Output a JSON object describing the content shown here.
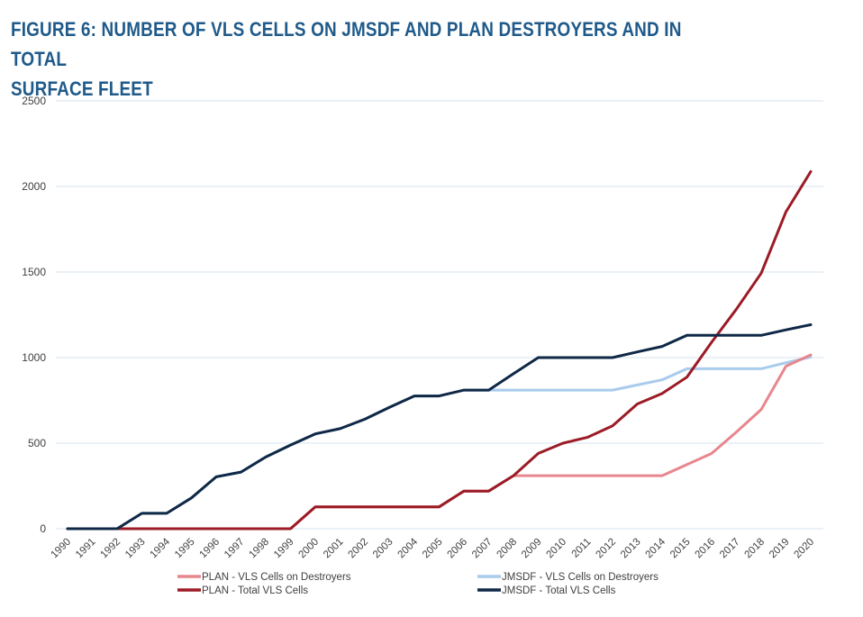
{
  "chart_data": {
    "type": "line",
    "title": "FIGURE 6: NUMBER OF VLS CELLS ON JMSDF AND PLAN DESTROYERS AND IN TOTAL SURFACE FLEET",
    "title_lines": [
      "FIGURE 6: NUMBER OF VLS CELLS ON JMSDF AND PLAN DESTROYERS AND IN TOTAL",
      "SURFACE FLEET"
    ],
    "xlabel": "",
    "ylabel": "",
    "ylim": [
      0,
      2500
    ],
    "yticks": [
      0,
      500,
      1000,
      1500,
      2000,
      2500
    ],
    "grid": true,
    "legend_position": "bottom",
    "x": [
      "1990",
      "1991",
      "1992",
      "1993",
      "1994",
      "1995",
      "1996",
      "1997",
      "1998",
      "1999",
      "2000",
      "2001",
      "2002",
      "2003",
      "2004",
      "2005",
      "2006",
      "2007",
      "2008",
      "2009",
      "2010",
      "2011",
      "2012",
      "2013",
      "2014",
      "2015",
      "2016",
      "2017",
      "2018",
      "2019",
      "2020"
    ],
    "series": [
      {
        "name": "PLAN - VLS Cells on Destroyers",
        "color": "#e8868e",
        "values": [
          0,
          0,
          0,
          0,
          0,
          0,
          0,
          0,
          0,
          0,
          128,
          128,
          128,
          128,
          128,
          128,
          220,
          220,
          310,
          310,
          310,
          310,
          310,
          310,
          310,
          375,
          440,
          565,
          697,
          950,
          1016
        ]
      },
      {
        "name": "JMSDF - VLS Cells on Destroyers",
        "color": "#a9cbec",
        "values": [
          0,
          0,
          0,
          90,
          90,
          180,
          303,
          331,
          419,
          489,
          554,
          585,
          640,
          710,
          776,
          776,
          810,
          810,
          810,
          810,
          810,
          810,
          810,
          840,
          870,
          935,
          935,
          935,
          935,
          970,
          1003
        ]
      },
      {
        "name": "PLAN - Total VLS Cells",
        "color": "#9b1b26",
        "values": [
          0,
          0,
          0,
          0,
          0,
          0,
          0,
          0,
          0,
          0,
          128,
          128,
          128,
          128,
          128,
          128,
          220,
          220,
          310,
          440,
          500,
          535,
          601,
          729,
          790,
          886,
          1090,
          1283,
          1493,
          1852,
          2087
        ]
      },
      {
        "name": "JMSDF - Total VLS Cells",
        "color": "#0f2846",
        "values": [
          0,
          0,
          0,
          90,
          90,
          180,
          303,
          331,
          419,
          489,
          554,
          585,
          640,
          710,
          776,
          776,
          810,
          810,
          906,
          1000,
          1000,
          1000,
          1000,
          1033,
          1065,
          1130,
          1130,
          1130,
          1130,
          1162,
          1192
        ]
      }
    ],
    "legend_order": [
      0,
      1,
      2,
      3
    ]
  },
  "colors": {
    "title": "#1f5a8a",
    "gridline": "#d5e3ef",
    "tick_text": "#404040"
  }
}
